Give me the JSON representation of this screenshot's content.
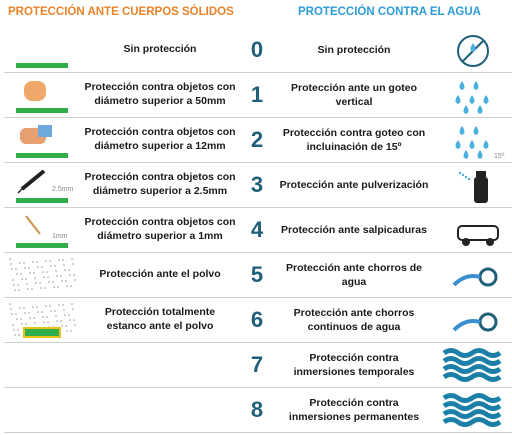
{
  "header": {
    "solid_title": "PROTECCIÓN ANTE CUERPOS SÓLIDOS",
    "water_title": "PROTECCIÓN CONTRA EL AGUA"
  },
  "rows": [
    {
      "solid": "Sin protección",
      "digit": 0,
      "water": "Sin protección"
    },
    {
      "solid": "Protección contra objetos con diámetro superior a 50mm",
      "digit": 1,
      "water": "Protección ante un goteo vertical"
    },
    {
      "solid": "Protección contra objetos con diámetro superior a 12mm",
      "digit": 2,
      "water": "Protección contra goteo con incluinación de 15º",
      "water_icon_label": "15º"
    },
    {
      "solid": "Protección contra objetos con diámetro superior a 2.5mm",
      "solid_icon_label": "2.5mm",
      "digit": 3,
      "water": "Protección ante pulverización"
    },
    {
      "solid": "Protección contra objetos con diámetro superior a 1mm",
      "solid_icon_label": "1mm",
      "digit": 4,
      "water": "Protección ante salpicaduras"
    },
    {
      "solid": "Protección ante el polvo",
      "digit": 5,
      "water": "Protección ante chorros de agua"
    },
    {
      "solid": "Protección totalmente estanco ante el polvo",
      "digit": 6,
      "water": "Protección ante chorros continuos de agua"
    },
    {
      "digit": 7,
      "water": "Protección contra inmersiones temporales"
    },
    {
      "digit": 8,
      "water": "Protección contra inmersiones permanentes"
    }
  ]
}
